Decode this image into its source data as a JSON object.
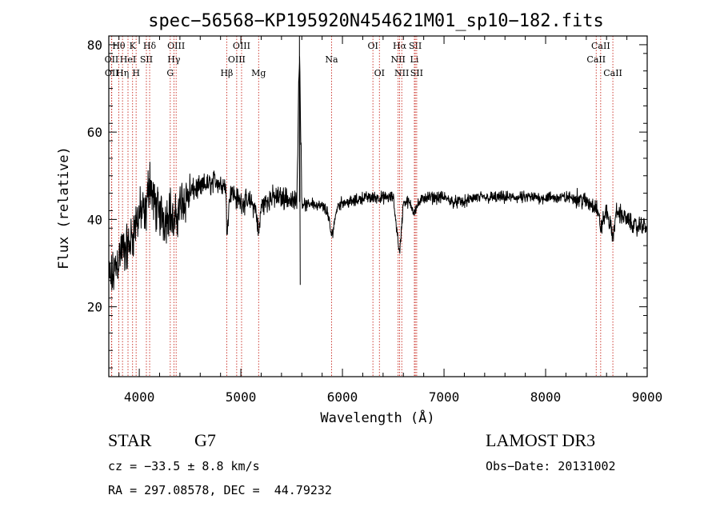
{
  "chart_data": {
    "type": "line",
    "title": "spec−56568−KP195920N454621M01_sp10−182.fits",
    "xlabel": "Wavelength (Å)",
    "ylabel": "Flux (relative)",
    "xlim": [
      3700,
      9000
    ],
    "ylim": [
      4,
      82
    ],
    "x_ticks": [
      4000,
      5000,
      6000,
      7000,
      8000,
      9000
    ],
    "y_ticks": [
      20,
      40,
      60,
      80
    ],
    "series": [
      {
        "name": "flux",
        "x": [
          3700,
          3740,
          3780,
          3820,
          3860,
          3900,
          3940,
          3980,
          4020,
          4060,
          4101,
          4140,
          4180,
          4220,
          4260,
          4300,
          4340,
          4380,
          4420,
          4460,
          4500,
          4550,
          4600,
          4650,
          4700,
          4750,
          4800,
          4850,
          4861,
          4900,
          4950,
          5000,
          5050,
          5100,
          5150,
          5175,
          5200,
          5250,
          5300,
          5350,
          5400,
          5450,
          5500,
          5550,
          5577,
          5600,
          5650,
          5700,
          5750,
          5800,
          5850,
          5893,
          5950,
          6000,
          6100,
          6200,
          6300,
          6400,
          6500,
          6563,
          6600,
          6650,
          6700,
          6800,
          6900,
          7000,
          7100,
          7200,
          7300,
          7400,
          7500,
          7600,
          7700,
          7800,
          7900,
          8000,
          8100,
          8200,
          8300,
          8400,
          8500,
          8542,
          8600,
          8662,
          8700,
          8800,
          8900,
          8950,
          9000
        ],
        "y": [
          26,
          27,
          30,
          33,
          33,
          34,
          37,
          40,
          42,
          40,
          50,
          44,
          42,
          41,
          40,
          43,
          38,
          42,
          44,
          45,
          46,
          47,
          47,
          48,
          48,
          49,
          48,
          48,
          38,
          47,
          45,
          44,
          44,
          44,
          42,
          36,
          43,
          44,
          45,
          45,
          45,
          45,
          44,
          44,
          80,
          44,
          43,
          44,
          43,
          43,
          42,
          36,
          43,
          44,
          44,
          45,
          45,
          45,
          45,
          32,
          44,
          44,
          42,
          45,
          45,
          45,
          44,
          44,
          45,
          45,
          45,
          45,
          45,
          45,
          45,
          45,
          45,
          45,
          45,
          44,
          43,
          38,
          42,
          36,
          42,
          40,
          38,
          39,
          38
        ]
      }
    ],
    "line_markers": [
      {
        "label": "Hθ",
        "wavelength": 3798,
        "row": 1
      },
      {
        "label": "OII",
        "wavelength": 3727,
        "row": 2
      },
      {
        "label": "OII",
        "wavelength": 3729,
        "row": 3
      },
      {
        "label": "HeI",
        "wavelength": 3889,
        "row": 2
      },
      {
        "label": "Hη",
        "wavelength": 3835,
        "row": 3
      },
      {
        "label": "K",
        "wavelength": 3934,
        "row": 1
      },
      {
        "label": "H",
        "wavelength": 3969,
        "row": 3
      },
      {
        "label": "SII",
        "wavelength": 4070,
        "row": 2
      },
      {
        "label": "Hδ",
        "wavelength": 4102,
        "row": 1
      },
      {
        "label": "OIII",
        "wavelength": 4363,
        "row": 1
      },
      {
        "label": "Hγ",
        "wavelength": 4341,
        "row": 2
      },
      {
        "label": "G",
        "wavelength": 4305,
        "row": 3
      },
      {
        "label": "Hβ",
        "wavelength": 4861,
        "row": 3
      },
      {
        "label": "OIII",
        "wavelength": 5007,
        "row": 1
      },
      {
        "label": "OIII",
        "wavelength": 4959,
        "row": 2
      },
      {
        "label": "Mg",
        "wavelength": 5175,
        "row": 3
      },
      {
        "label": "Na",
        "wavelength": 5893,
        "row": 2
      },
      {
        "label": "OI",
        "wavelength": 6300,
        "row": 1
      },
      {
        "label": "OI",
        "wavelength": 6364,
        "row": 3
      },
      {
        "label": "Hα",
        "wavelength": 6563,
        "row": 1
      },
      {
        "label": "NII",
        "wavelength": 6548,
        "row": 2
      },
      {
        "label": "NII",
        "wavelength": 6584,
        "row": 3
      },
      {
        "label": "SII",
        "wavelength": 6717,
        "row": 1
      },
      {
        "label": "Li",
        "wavelength": 6708,
        "row": 2
      },
      {
        "label": "SII",
        "wavelength": 6731,
        "row": 3
      },
      {
        "label": "CaII",
        "wavelength": 8542,
        "row": 1
      },
      {
        "label": "CaII",
        "wavelength": 8498,
        "row": 2
      },
      {
        "label": "CaII",
        "wavelength": 8662,
        "row": 3
      }
    ],
    "colors": {
      "line": "#000000",
      "marker": "#c8281e",
      "axis": "#000000"
    }
  },
  "info": {
    "object_class": "STAR",
    "subclass": "G7",
    "survey": "LAMOST DR3",
    "redshift": "cz = −33.5 ± 8.8 km/s",
    "obs_date": "Obs−Date: 20131002",
    "coords": "RA = 297.08578, DEC =  44.79232"
  }
}
